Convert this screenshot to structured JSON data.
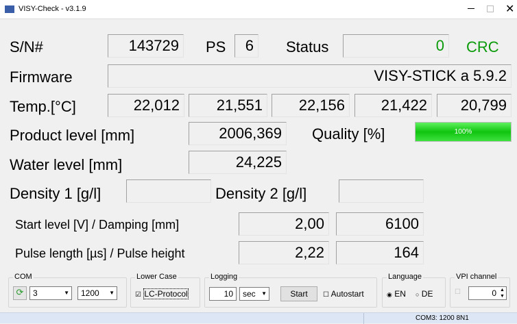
{
  "window": {
    "title": "VISY-Check - v3.1.9"
  },
  "row_sn": {
    "sn_label": "S/N#",
    "sn": "143729",
    "ps_label": "PS",
    "ps": "6",
    "status_label": "Status",
    "status": "0",
    "crc": "CRC"
  },
  "firmware": {
    "label": "Firmware",
    "value": "VISY-STICK a 5.9.2"
  },
  "temp": {
    "label": "Temp.[°C]",
    "values": [
      "22,012",
      "21,551",
      "22,156",
      "21,422",
      "20,799"
    ]
  },
  "product": {
    "label": "Product level [mm]",
    "value": "2006,369",
    "quality_label": "Quality [%]",
    "quality": "100%"
  },
  "water": {
    "label": "Water level [mm]",
    "value": "24,225"
  },
  "density": {
    "label1": "Density 1 [g/l]",
    "label2": "Density 2 [g/l]"
  },
  "start": {
    "label": "Start level [V] / Damping [mm]",
    "level": "2,00",
    "damping": "6100"
  },
  "pulse": {
    "label": "Pulse length [µs] / Pulse height",
    "length": "2,22",
    "height": "164"
  },
  "groups": {
    "com": {
      "title": "COM",
      "port": "3",
      "baud": "1200"
    },
    "lower_case": {
      "title": "Lower Case",
      "option": "LC-Protocol"
    },
    "logging": {
      "title": "Logging",
      "interval": "10",
      "unit": "sec",
      "button": "Start",
      "autostart": "Autostart"
    },
    "language": {
      "title": "Language",
      "en": "EN",
      "de": "DE"
    },
    "vpi": {
      "title": "VPI channel",
      "value": "0"
    }
  },
  "statusbar": {
    "text": "COM3: 1200 8N1"
  }
}
